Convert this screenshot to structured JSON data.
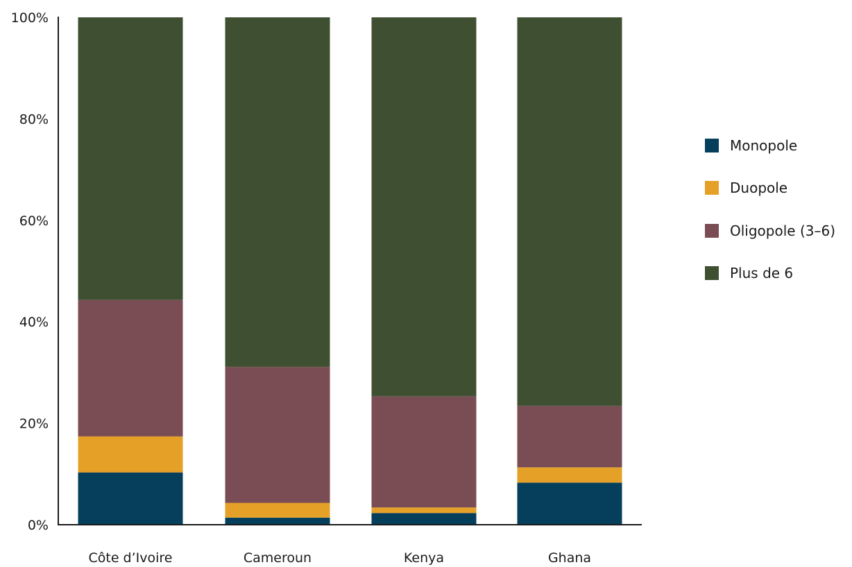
{
  "chart_data": {
    "type": "bar",
    "stacked": true,
    "title": "",
    "xlabel": "",
    "ylabel": "",
    "ylim": [
      0,
      100
    ],
    "yticks": [
      0,
      20,
      40,
      60,
      80,
      100
    ],
    "ytick_labels": [
      "0%",
      "20%",
      "40%",
      "60%",
      "80%",
      "100%"
    ],
    "categories": [
      "Côte d’Ivoire",
      "Cameroun",
      "Kenya",
      "Ghana"
    ],
    "series": [
      {
        "name": "Monopole",
        "color": "#063F5C",
        "values": [
          10.3,
          1.4,
          2.3,
          8.3
        ]
      },
      {
        "name": "Duopole",
        "color": "#E5A028",
        "values": [
          7.1,
          2.9,
          1.1,
          3.0
        ]
      },
      {
        "name": "Oligopole (3–6)",
        "color": "#7A4C53",
        "values": [
          26.9,
          26.8,
          21.9,
          12.1
        ]
      },
      {
        "name": "Plus de 6",
        "color": "#3F5032",
        "values": [
          55.7,
          68.9,
          74.7,
          76.6
        ]
      }
    ],
    "grid": false,
    "legend_position": "right"
  }
}
